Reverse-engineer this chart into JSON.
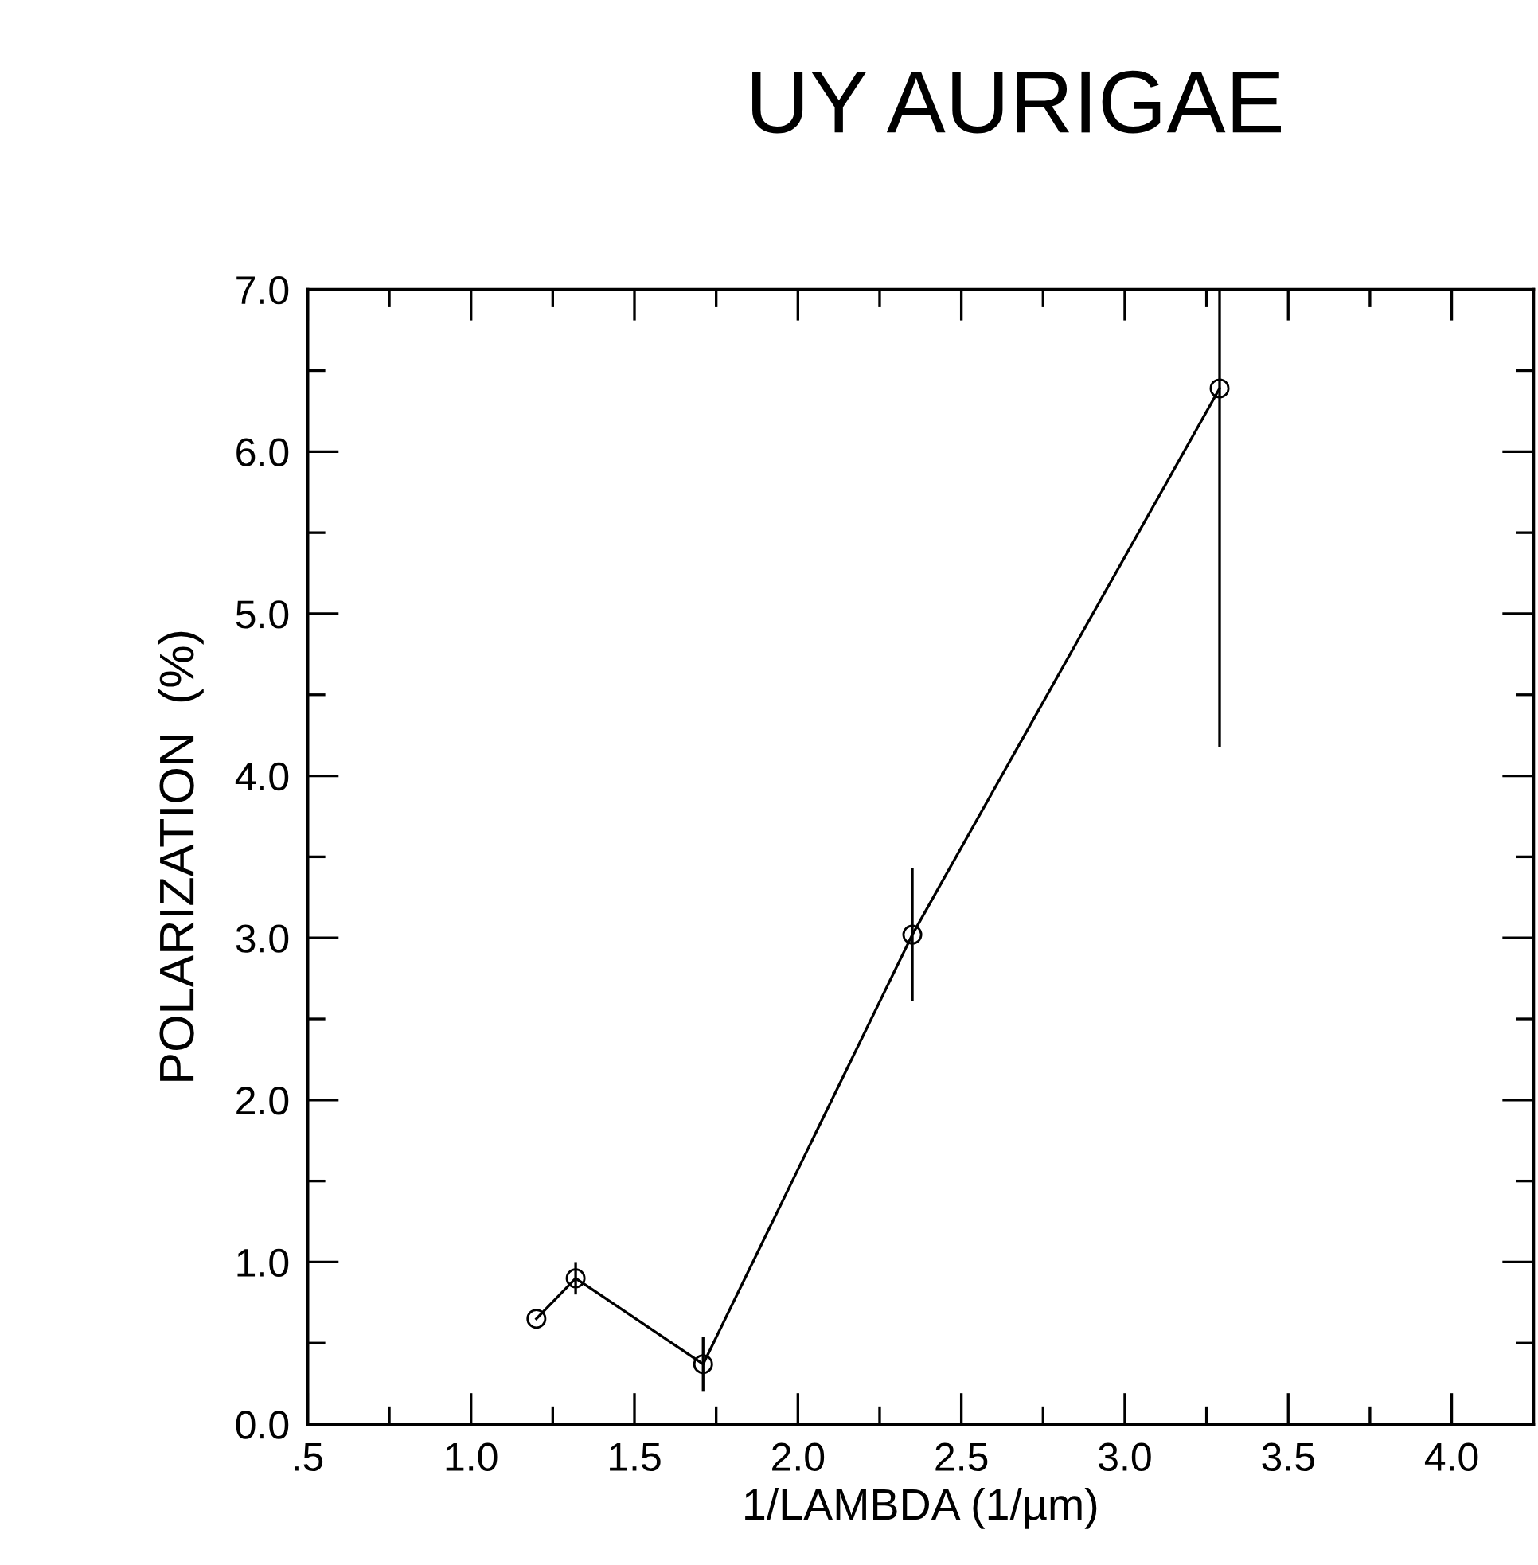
{
  "chart_data": {
    "type": "line",
    "title": "UY AURIGAE",
    "xlabel": "1/LAMBDA (1/µm)",
    "ylabel": "POLARIZATION  (%)",
    "x": [
      1.2,
      1.32,
      1.71,
      2.35,
      3.29
    ],
    "series": [
      {
        "color": "#000000",
        "values": [
          0.65,
          0.9,
          0.37,
          3.02,
          6.39
        ],
        "errors": [
          null,
          0.1,
          0.17,
          0.41,
          [
            4.18,
            7.0
          ]
        ]
      }
    ],
    "marker": "circle",
    "line_style": "solid",
    "grid": false,
    "xlim": [
      0.5,
      4.25
    ],
    "xticks": [
      {
        "value": 0.5,
        "label": ".5"
      },
      {
        "value": 0.75,
        "label": null
      },
      {
        "value": 1.0,
        "label": "1.0"
      },
      {
        "value": 1.25,
        "label": null
      },
      {
        "value": 1.5,
        "label": "1.5"
      },
      {
        "value": 1.75,
        "label": null
      },
      {
        "value": 2.0,
        "label": "2.0"
      },
      {
        "value": 2.25,
        "label": null
      },
      {
        "value": 2.5,
        "label": "2.5"
      },
      {
        "value": 2.75,
        "label": null
      },
      {
        "value": 3.0,
        "label": "3.0"
      },
      {
        "value": 3.25,
        "label": null
      },
      {
        "value": 3.5,
        "label": "3.5"
      },
      {
        "value": 3.75,
        "label": null
      },
      {
        "value": 4.0,
        "label": "4.0"
      }
    ],
    "ylim": [
      0,
      7
    ],
    "yticks": [
      {
        "value": 0,
        "label": "0.0"
      },
      {
        "value": 0.5,
        "label": null
      },
      {
        "value": 1,
        "label": "1.0"
      },
      {
        "value": 1.5,
        "label": null
      },
      {
        "value": 2,
        "label": "2.0"
      },
      {
        "value": 2.5,
        "label": null
      },
      {
        "value": 3,
        "label": "3.0"
      },
      {
        "value": 3.5,
        "label": null
      },
      {
        "value": 4,
        "label": "4.0"
      },
      {
        "value": 4.5,
        "label": null
      },
      {
        "value": 5,
        "label": "5.0"
      },
      {
        "value": 5.5,
        "label": null
      },
      {
        "value": 6,
        "label": "6.0"
      },
      {
        "value": 6.5,
        "label": null
      },
      {
        "value": 7,
        "label": "7.0"
      }
    ]
  }
}
